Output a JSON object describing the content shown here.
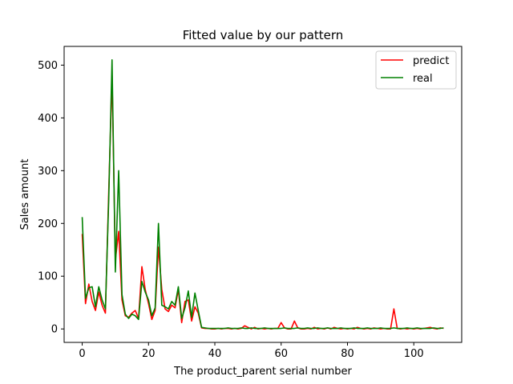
{
  "chart_data": {
    "type": "line",
    "title": "Fitted value by our pattern",
    "xlabel": "The product_parent serial number",
    "ylabel": "Sales amount",
    "xlim": [
      -5.45,
      114.45
    ],
    "ylim": [
      -25.5,
      535.5
    ],
    "xticks": [
      0,
      20,
      40,
      60,
      80,
      100
    ],
    "yticks": [
      0,
      100,
      200,
      300,
      400,
      500
    ],
    "grid": false,
    "legend_position": "top-right",
    "x": [
      0,
      1,
      2,
      3,
      4,
      5,
      6,
      7,
      8,
      9,
      10,
      11,
      12,
      13,
      14,
      15,
      16,
      17,
      18,
      19,
      20,
      21,
      22,
      23,
      24,
      25,
      26,
      27,
      28,
      29,
      30,
      31,
      32,
      33,
      34,
      35,
      36,
      37,
      38,
      39,
      40,
      41,
      42,
      43,
      44,
      45,
      46,
      47,
      48,
      49,
      50,
      51,
      52,
      53,
      54,
      55,
      56,
      57,
      58,
      59,
      60,
      61,
      62,
      63,
      64,
      65,
      66,
      67,
      68,
      69,
      70,
      71,
      72,
      73,
      74,
      75,
      76,
      77,
      78,
      79,
      80,
      81,
      82,
      83,
      84,
      85,
      86,
      87,
      88,
      89,
      90,
      91,
      92,
      93,
      94,
      95,
      96,
      97,
      98,
      99,
      100,
      101,
      102,
      103,
      104,
      105,
      106,
      107,
      108,
      109
    ],
    "series": [
      {
        "name": "predict",
        "color": "#ff0000",
        "values": [
          180,
          48,
          85,
          52,
          35,
          70,
          45,
          30,
          260,
          480,
          130,
          185,
          55,
          25,
          22,
          30,
          35,
          20,
          118,
          75,
          48,
          18,
          35,
          155,
          75,
          38,
          33,
          45,
          40,
          75,
          12,
          52,
          55,
          15,
          42,
          30,
          2,
          1,
          1,
          0,
          0,
          1,
          0,
          1,
          1,
          0,
          1,
          0,
          1,
          6,
          3,
          0,
          3,
          0,
          1,
          0,
          1,
          0,
          1,
          1,
          12,
          2,
          0,
          0,
          15,
          2,
          0,
          0,
          1,
          0,
          3,
          0,
          1,
          0,
          2,
          0,
          3,
          1,
          0,
          1,
          0,
          1,
          0,
          3,
          1,
          0,
          1,
          0,
          2,
          1,
          0,
          1,
          0,
          0,
          38,
          1,
          0,
          1,
          0,
          1,
          0,
          1,
          0,
          1,
          2,
          3,
          1,
          0,
          2,
          1
        ]
      },
      {
        "name": "real",
        "color": "#008000",
        "values": [
          212,
          58,
          78,
          80,
          42,
          80,
          55,
          38,
          245,
          510,
          108,
          300,
          65,
          28,
          20,
          28,
          25,
          18,
          90,
          70,
          55,
          25,
          40,
          200,
          45,
          42,
          38,
          52,
          45,
          80,
          20,
          40,
          72,
          22,
          68,
          35,
          3,
          2,
          1,
          1,
          1,
          1,
          1,
          1,
          2,
          1,
          1,
          1,
          2,
          1,
          1,
          2,
          1,
          1,
          1,
          2,
          1,
          1,
          1,
          1,
          1,
          2,
          1,
          1,
          1,
          2,
          1,
          1,
          2,
          1,
          1,
          2,
          1,
          1,
          2,
          1,
          1,
          1,
          2,
          1,
          1,
          1,
          2,
          1,
          1,
          1,
          2,
          1,
          1,
          1,
          2,
          1,
          1,
          1,
          2,
          1,
          1,
          1,
          2,
          1,
          1,
          2,
          1,
          1,
          1,
          1,
          2,
          1,
          1,
          2
        ]
      }
    ]
  }
}
